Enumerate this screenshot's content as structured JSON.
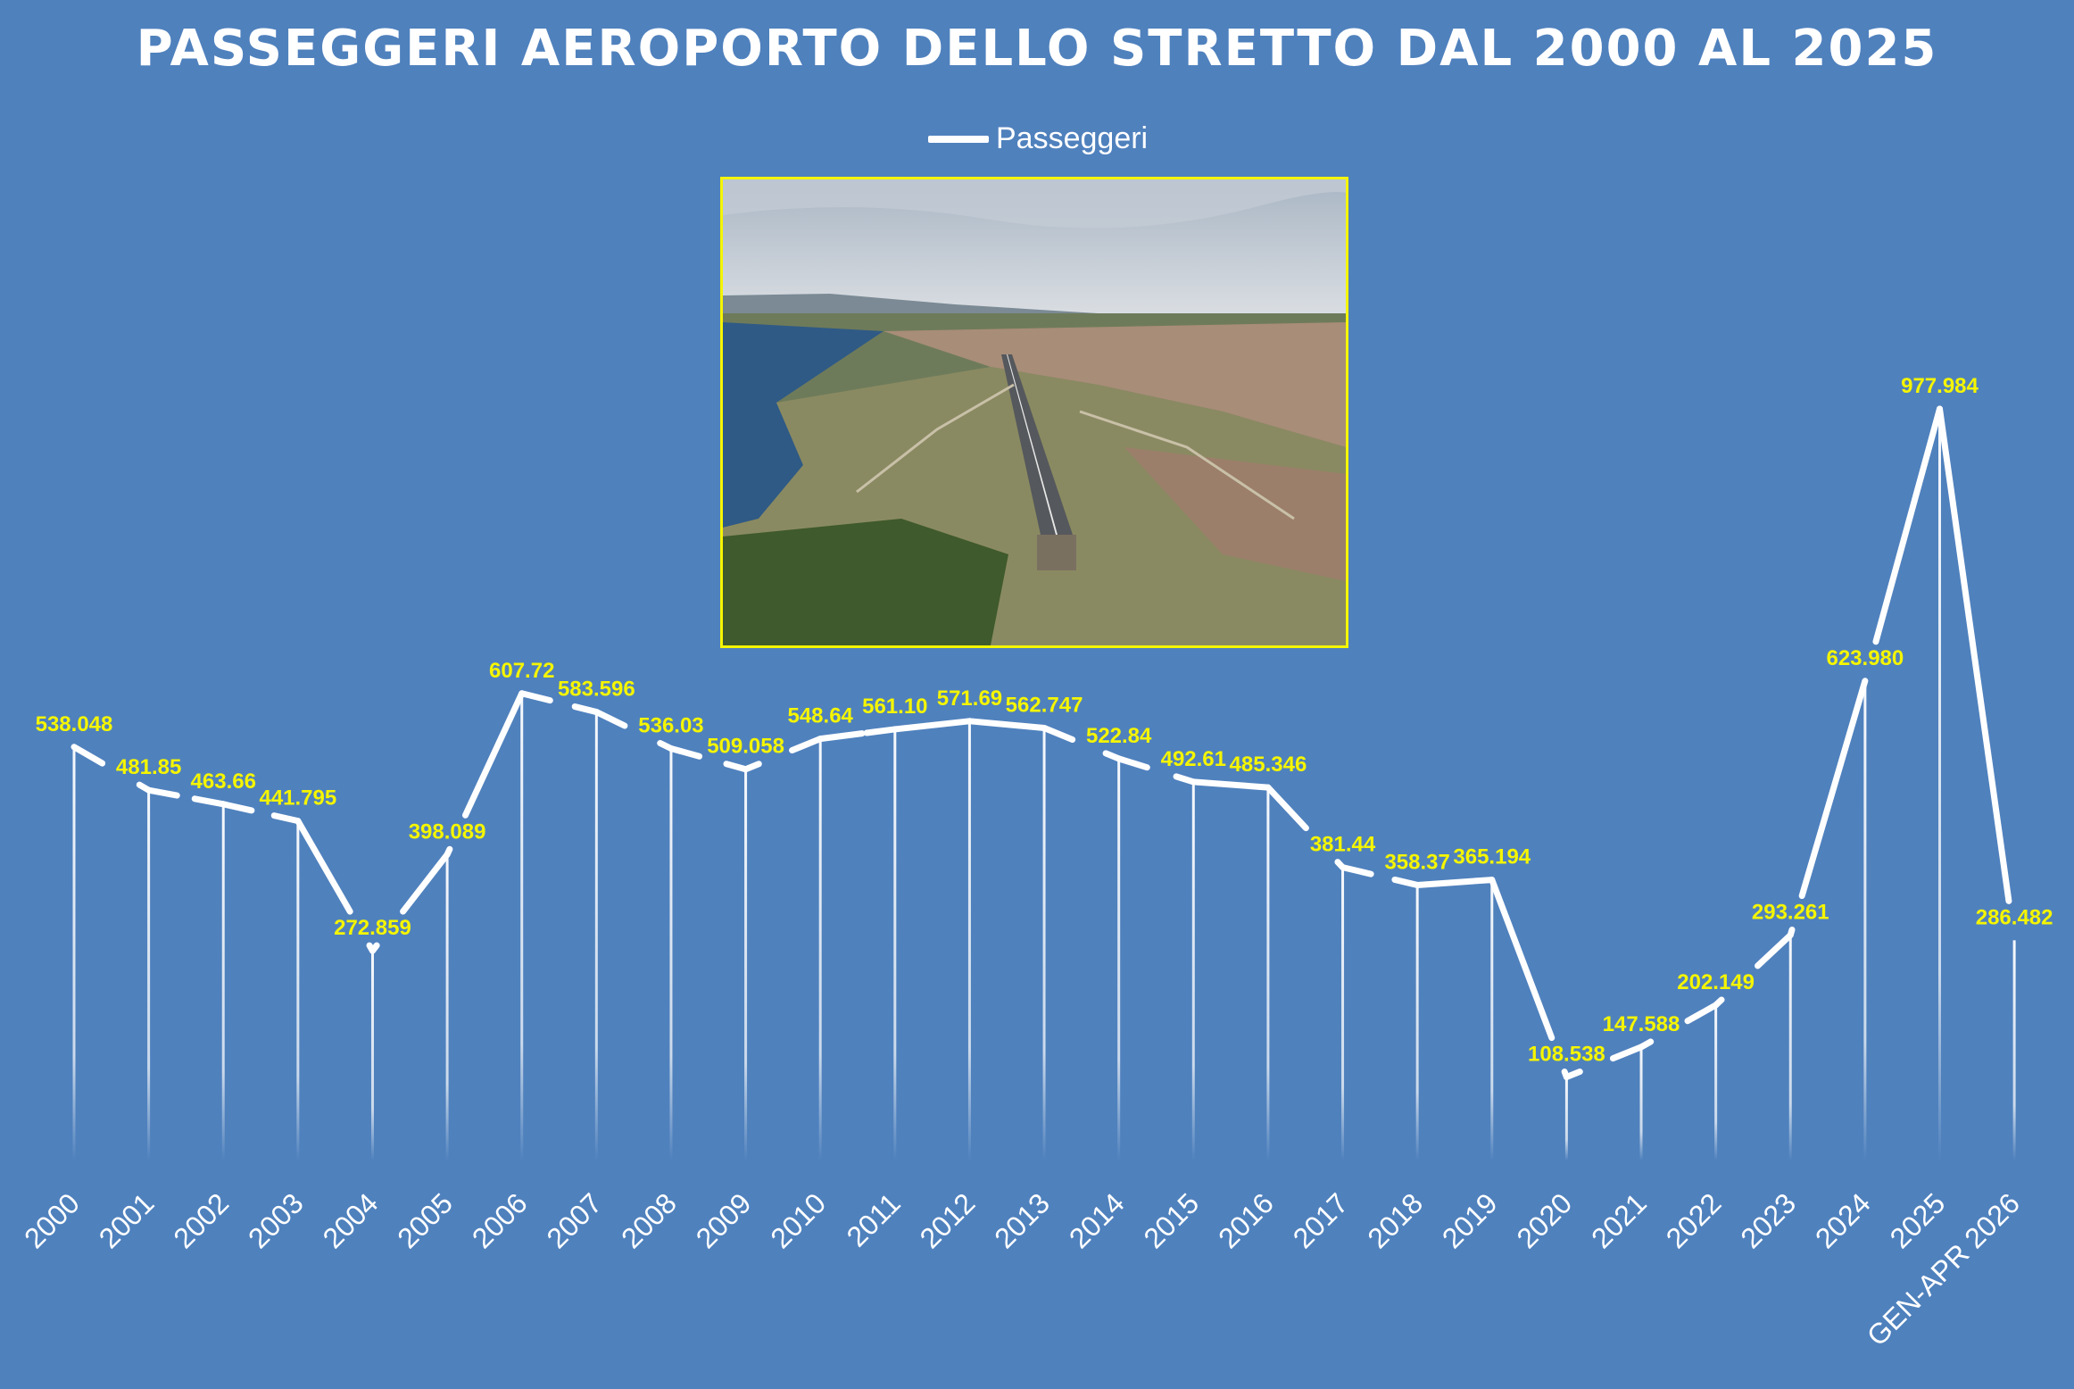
{
  "chart_data": {
    "type": "line",
    "title": "PASSEGGERI AEROPORTO DELLO STRETTO DAL 2000 AL 2025",
    "legend": {
      "position": "top",
      "entries": [
        "Passeggeri"
      ]
    },
    "grid": false,
    "categories": [
      "2000",
      "2001",
      "2002",
      "2003",
      "2004",
      "2005",
      "2006",
      "2007",
      "2008",
      "2009",
      "2010",
      "2011",
      "2012",
      "2013",
      "2014",
      "2015",
      "2016",
      "2017",
      "2018",
      "2019",
      "2020",
      "2021",
      "2022",
      "2023",
      "2024",
      "2025",
      "GEN-APR 2026"
    ],
    "series": [
      {
        "name": "Passeggeri",
        "values": [
          538048,
          481850,
          463660,
          441795,
          272859,
          398089,
          607720,
          583596,
          536030,
          509058,
          548640,
          561100,
          571690,
          562747,
          522840,
          492610,
          485346,
          381440,
          358370,
          365194,
          108538,
          147588,
          202149,
          293261,
          623980,
          977984,
          286482
        ],
        "labels": [
          "538.048",
          "481.85",
          "463.66",
          "441.795",
          "272.859",
          "398.089",
          "607.72",
          "583.596",
          "536.03",
          "509.058",
          "548.64",
          "561.10",
          "571.69",
          "562.747",
          "522.84",
          "492.61",
          "485.346",
          "381.44",
          "358.37",
          "365.194",
          "108.538",
          "147.588",
          "202.149",
          "293.261",
          "623.980",
          "977.984",
          "286.482"
        ]
      }
    ],
    "colors": {
      "background": "#4f81bd",
      "line": "#ffffff",
      "data_label": "#f5f500",
      "text": "#ffffff",
      "photo_border": "#f5f500"
    }
  }
}
